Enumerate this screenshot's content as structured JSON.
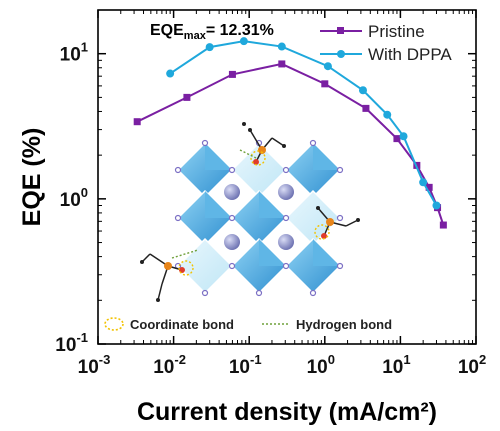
{
  "chart_data": {
    "type": "line",
    "xlabel": "Current density (mA/cm²)",
    "ylabel": "EQE (%)",
    "x_scale": "log",
    "y_scale": "log",
    "xlim": [
      0.001,
      100
    ],
    "ylim": [
      0.1,
      20
    ],
    "x_ticks": [
      0.001,
      0.01,
      0.1,
      1,
      10,
      100
    ],
    "y_ticks": [
      0.1,
      1,
      10
    ],
    "x_tick_labels": [
      {
        "base": "10",
        "exp": "-3"
      },
      {
        "base": "10",
        "exp": "-2"
      },
      {
        "base": "10",
        "exp": "-1"
      },
      {
        "base": "10",
        "exp": "0"
      },
      {
        "base": "10",
        "exp": "1"
      },
      {
        "base": "10",
        "exp": "2"
      }
    ],
    "y_tick_labels": [
      {
        "base": "10",
        "exp": "-1"
      },
      {
        "base": "10",
        "exp": "0"
      },
      {
        "base": "10",
        "exp": "1"
      }
    ],
    "grid": false,
    "legend_position": "top-right",
    "annotation": {
      "prefix": "EQE",
      "sub": "max",
      "suffix": "= 12.31%"
    },
    "series": [
      {
        "name": "Pristine",
        "color": "#7a1fa2",
        "marker": "square",
        "x": [
          0.0033,
          0.015,
          0.06,
          0.27,
          1.0,
          3.5,
          9.0,
          16.5,
          24.0,
          31.0,
          37.0
        ],
        "y": [
          3.4,
          5.0,
          7.2,
          8.5,
          6.2,
          4.2,
          2.6,
          1.7,
          1.2,
          0.87,
          0.66
        ]
      },
      {
        "name": "With DPPA",
        "color": "#1fa8dc",
        "marker": "circle",
        "x": [
          0.009,
          0.03,
          0.085,
          0.27,
          1.1,
          3.2,
          6.7,
          11.0,
          20.0,
          30.0
        ],
        "y": [
          7.3,
          11.1,
          12.2,
          11.2,
          8.2,
          5.6,
          3.8,
          2.7,
          1.3,
          0.9
        ]
      }
    ],
    "inset": {
      "legend": [
        {
          "label": "Coordinate bond",
          "style": "dotted-circle",
          "color": "#f2c200"
        },
        {
          "label": "Hydrogen bond",
          "style": "dotted-line",
          "color": "#6ea03a"
        }
      ]
    }
  }
}
